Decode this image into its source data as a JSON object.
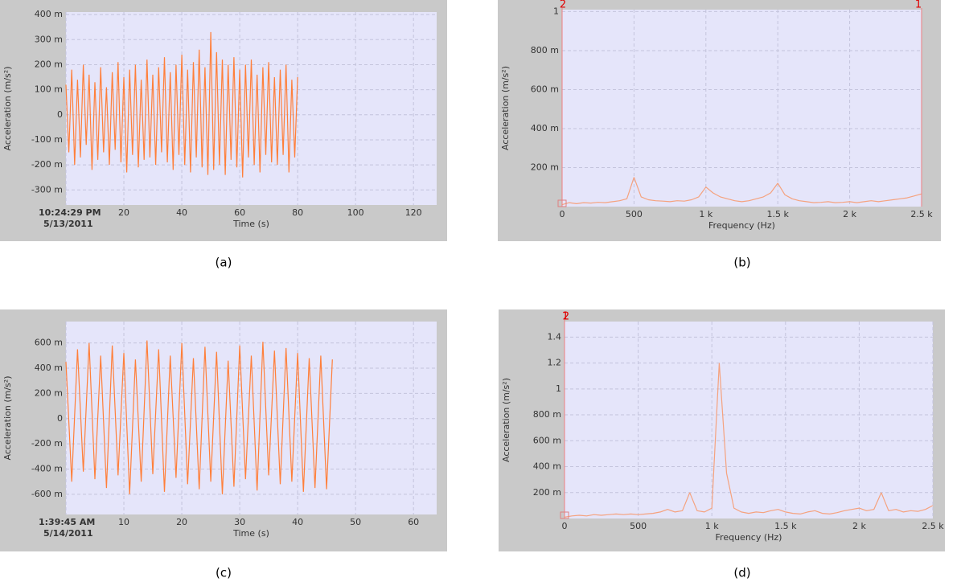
{
  "chart_data": [
    {
      "type": "line",
      "caption": "(a)",
      "x_label": "Time (s)",
      "y_label": "Acceleration (m/s²)",
      "start_date": "5/13/2011",
      "xlim": [
        0,
        128
      ],
      "ylim": [
        -0.36,
        0.41
      ],
      "grid": true,
      "xticks": [
        {
          "value": 0,
          "label": "10:24:29 PM"
        },
        20,
        40,
        60,
        80,
        100,
        120
      ],
      "yticks": [
        {
          "value": -0.3,
          "label": "-300 m"
        },
        {
          "value": -0.2,
          "label": "-200 m"
        },
        {
          "value": -0.1,
          "label": "-100 m"
        },
        0,
        {
          "value": 0.1,
          "label": "100 m"
        },
        {
          "value": 0.2,
          "label": "200 m"
        },
        {
          "value": 0.3,
          "label": "300 m"
        },
        {
          "value": 0.4,
          "label": "400 m"
        }
      ],
      "x": [
        0,
        1,
        2,
        3,
        4,
        5,
        6,
        7,
        8,
        9,
        10,
        11,
        12,
        13,
        14,
        15,
        16,
        17,
        18,
        19,
        20,
        21,
        22,
        23,
        24,
        25,
        26,
        27,
        28,
        29,
        30,
        31,
        32,
        33,
        34,
        35,
        36,
        37,
        38,
        39,
        40,
        41,
        42,
        43,
        44,
        45,
        46,
        47,
        48,
        49,
        50,
        51,
        52,
        53,
        54,
        55,
        56,
        57,
        58,
        59,
        60,
        61,
        62,
        63,
        64,
        65,
        66,
        67,
        68,
        69,
        70,
        71,
        72,
        73,
        74,
        75,
        76,
        77,
        78,
        79,
        80
      ],
      "series": [
        {
          "color": "#ff7f3a",
          "values": [
            0.12,
            -0.15,
            0.18,
            -0.2,
            0.14,
            -0.17,
            0.2,
            -0.12,
            0.16,
            -0.22,
            0.13,
            -0.18,
            0.19,
            -0.15,
            0.11,
            -0.2,
            0.17,
            -0.14,
            0.21,
            -0.19,
            0.15,
            -0.23,
            0.18,
            -0.16,
            0.2,
            -0.21,
            0.14,
            -0.18,
            0.22,
            -0.17,
            0.16,
            -0.2,
            0.19,
            -0.15,
            0.23,
            -0.19,
            0.17,
            -0.22,
            0.2,
            -0.16,
            0.24,
            -0.2,
            0.18,
            -0.23,
            0.21,
            -0.17,
            0.26,
            -0.21,
            0.19,
            -0.24,
            0.33,
            -0.22,
            0.25,
            -0.2,
            0.22,
            -0.24,
            0.2,
            -0.18,
            0.23,
            -0.21,
            0.18,
            -0.25,
            0.2,
            -0.17,
            0.22,
            -0.2,
            0.16,
            -0.23,
            0.19,
            -0.16,
            0.21,
            -0.19,
            0.15,
            -0.2,
            0.18,
            -0.16,
            0.2,
            -0.23,
            0.14,
            -0.17,
            0.15
          ]
        }
      ]
    },
    {
      "type": "line",
      "caption": "(b)",
      "x_label": "Frequency (Hz)",
      "y_label": "Acceleration (m/s²)",
      "xlim": [
        0,
        2500
      ],
      "ylim": [
        0,
        1.01
      ],
      "grid": true,
      "cursors": [
        {
          "label": "2",
          "x": 0
        },
        {
          "label": "1",
          "x": 2500
        }
      ],
      "xticks": [
        0,
        500,
        {
          "value": 1000,
          "label": "1 k"
        },
        {
          "value": 1500,
          "label": "1.5 k"
        },
        {
          "value": 2000,
          "label": "2 k"
        },
        {
          "value": 2500,
          "label": "2.5 k"
        }
      ],
      "yticks": [
        {
          "value": 0.2,
          "label": "200 m"
        },
        {
          "value": 0.4,
          "label": "400 m"
        },
        {
          "value": 0.6,
          "label": "600 m"
        },
        {
          "value": 0.8,
          "label": "800 m"
        },
        1
      ],
      "x": [
        0,
        50,
        100,
        150,
        200,
        250,
        300,
        350,
        400,
        450,
        500,
        550,
        600,
        650,
        700,
        750,
        800,
        850,
        900,
        950,
        1000,
        1050,
        1100,
        1150,
        1200,
        1250,
        1300,
        1350,
        1400,
        1450,
        1500,
        1550,
        1600,
        1650,
        1700,
        1750,
        1800,
        1850,
        1900,
        1950,
        2000,
        2050,
        2100,
        2150,
        2200,
        2250,
        2300,
        2350,
        2400,
        2450,
        2500
      ],
      "series": [
        {
          "color": "#f5a27e",
          "values": [
            0.01,
            0.02,
            0.015,
            0.02,
            0.018,
            0.022,
            0.02,
            0.025,
            0.03,
            0.04,
            0.15,
            0.05,
            0.035,
            0.03,
            0.028,
            0.025,
            0.03,
            0.028,
            0.035,
            0.05,
            0.1,
            0.07,
            0.05,
            0.04,
            0.03,
            0.025,
            0.03,
            0.04,
            0.05,
            0.07,
            0.12,
            0.06,
            0.04,
            0.03,
            0.025,
            0.02,
            0.022,
            0.025,
            0.02,
            0.022,
            0.025,
            0.02,
            0.025,
            0.03,
            0.025,
            0.03,
            0.035,
            0.04,
            0.045,
            0.055,
            0.065
          ]
        }
      ]
    },
    {
      "type": "line",
      "caption": "(c)",
      "x_label": "Time (s)",
      "y_label": "Acceleration (m/s²)",
      "start_date": "5/14/2011",
      "xlim": [
        0,
        64
      ],
      "ylim": [
        -0.76,
        0.77
      ],
      "grid": true,
      "xticks": [
        {
          "value": 0,
          "label": "1:39:45 AM"
        },
        10,
        20,
        30,
        40,
        50,
        60
      ],
      "yticks": [
        {
          "value": -0.6,
          "label": "-600 m"
        },
        {
          "value": -0.4,
          "label": "-400 m"
        },
        {
          "value": -0.2,
          "label": "-200 m"
        },
        0,
        {
          "value": 0.2,
          "label": "200 m"
        },
        {
          "value": 0.4,
          "label": "400 m"
        },
        {
          "value": 0.6,
          "label": "600 m"
        }
      ],
      "x": [
        0,
        1,
        2,
        3,
        4,
        5,
        6,
        7,
        8,
        9,
        10,
        11,
        12,
        13,
        14,
        15,
        16,
        17,
        18,
        19,
        20,
        21,
        22,
        23,
        24,
        25,
        26,
        27,
        28,
        29,
        30,
        31,
        32,
        33,
        34,
        35,
        36,
        37,
        38,
        39,
        40,
        41,
        42,
        43,
        44,
        45,
        46
      ],
      "series": [
        {
          "color": "#ff7f3a",
          "values": [
            0.45,
            -0.5,
            0.55,
            -0.42,
            0.6,
            -0.48,
            0.5,
            -0.55,
            0.58,
            -0.45,
            0.52,
            -0.6,
            0.47,
            -0.5,
            0.62,
            -0.44,
            0.55,
            -0.58,
            0.5,
            -0.47,
            0.6,
            -0.52,
            0.48,
            -0.56,
            0.57,
            -0.5,
            0.53,
            -0.6,
            0.46,
            -0.54,
            0.58,
            -0.48,
            0.5,
            -0.57,
            0.61,
            -0.45,
            0.54,
            -0.52,
            0.56,
            -0.5,
            0.52,
            -0.58,
            0.48,
            -0.55,
            0.5,
            -0.56,
            0.47
          ]
        }
      ]
    },
    {
      "type": "line",
      "caption": "(d)",
      "x_label": "Frequency (Hz)",
      "y_label": "Acceleration (m/s²)",
      "xlim": [
        0,
        2500
      ],
      "ylim": [
        0,
        1.52
      ],
      "grid": true,
      "cursors": [
        {
          "label": "1",
          "x": 0
        },
        {
          "label": "2",
          "x": 0
        }
      ],
      "xticks": [
        0,
        500,
        {
          "value": 1000,
          "label": "1 k"
        },
        {
          "value": 1500,
          "label": "1.5 k"
        },
        {
          "value": 2000,
          "label": "2 k"
        },
        {
          "value": 2500,
          "label": "2.5 k"
        }
      ],
      "yticks": [
        {
          "value": 0.2,
          "label": "200 m"
        },
        {
          "value": 0.4,
          "label": "400 m"
        },
        {
          "value": 0.6,
          "label": "600 m"
        },
        {
          "value": 0.8,
          "label": "800 m"
        },
        1,
        1.2,
        1.4
      ],
      "x": [
        0,
        50,
        100,
        150,
        200,
        250,
        300,
        350,
        400,
        450,
        500,
        550,
        600,
        650,
        700,
        750,
        800,
        850,
        900,
        950,
        1000,
        1050,
        1100,
        1150,
        1200,
        1250,
        1300,
        1350,
        1400,
        1450,
        1500,
        1550,
        1600,
        1650,
        1700,
        1750,
        1800,
        1850,
        1900,
        1950,
        2000,
        2050,
        2100,
        2150,
        2200,
        2250,
        2300,
        2350,
        2400,
        2450,
        2500
      ],
      "series": [
        {
          "color": "#f5a27e",
          "values": [
            0.01,
            0.02,
            0.025,
            0.02,
            0.03,
            0.025,
            0.03,
            0.035,
            0.03,
            0.035,
            0.03,
            0.035,
            0.04,
            0.05,
            0.07,
            0.05,
            0.06,
            0.2,
            0.06,
            0.05,
            0.08,
            1.2,
            0.35,
            0.08,
            0.05,
            0.04,
            0.05,
            0.045,
            0.06,
            0.07,
            0.05,
            0.04,
            0.035,
            0.05,
            0.06,
            0.04,
            0.035,
            0.045,
            0.06,
            0.07,
            0.08,
            0.06,
            0.07,
            0.2,
            0.06,
            0.07,
            0.05,
            0.06,
            0.055,
            0.07,
            0.1
          ]
        }
      ]
    }
  ]
}
